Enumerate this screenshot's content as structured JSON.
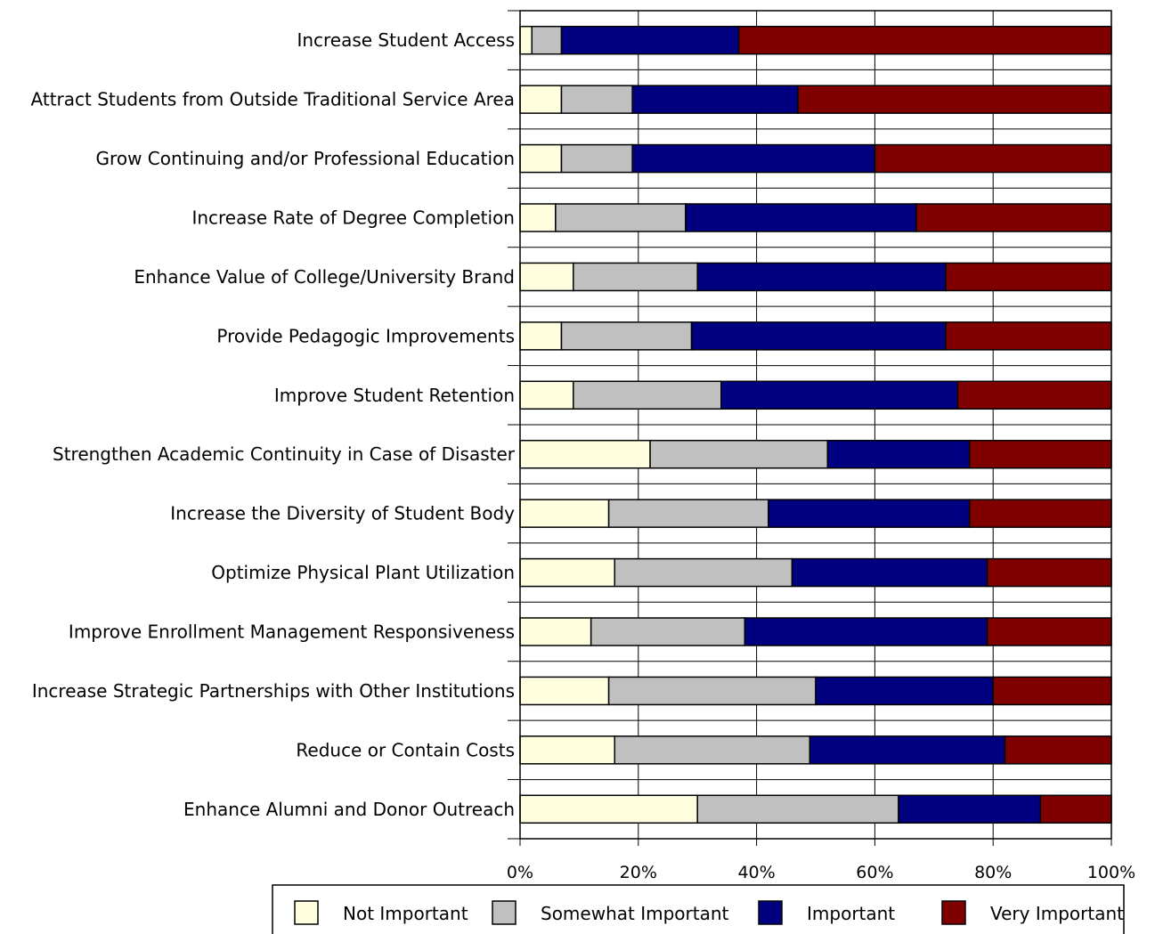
{
  "chart_data": {
    "type": "bar",
    "orientation": "horizontal",
    "stacked": true,
    "categories": [
      "Increase Student Access",
      "Attract Students from Outside Traditional Service Area",
      "Grow Continuing and/or Professional Education",
      "Increase Rate of Degree Completion",
      "Enhance Value of College/University Brand",
      "Provide Pedagogic Improvements",
      "Improve Student Retention",
      "Strengthen Academic Continuity in Case of Disaster",
      "Increase the Diversity of Student Body",
      "Optimize Physical Plant Utilization",
      "Improve Enrollment Management Responsiveness",
      "Increase Strategic Partnerships with Other Institutions",
      "Reduce or Contain Costs",
      "Enhance Alumni and Donor Outreach"
    ],
    "series": [
      {
        "name": "Not Important",
        "color": "#FFFFE0",
        "values": [
          2,
          7,
          7,
          6,
          9,
          7,
          9,
          22,
          15,
          16,
          12,
          15,
          16,
          30
        ]
      },
      {
        "name": "Somewhat Important",
        "color": "#C0C0C0",
        "values": [
          5,
          12,
          12,
          22,
          21,
          22,
          25,
          30,
          27,
          30,
          26,
          35,
          33,
          34
        ]
      },
      {
        "name": "Important",
        "color": "#000080",
        "values": [
          30,
          28,
          41,
          39,
          42,
          43,
          40,
          24,
          34,
          33,
          41,
          30,
          33,
          24
        ]
      },
      {
        "name": "Very Important",
        "color": "#800000",
        "values": [
          63,
          53,
          40,
          33,
          28,
          28,
          26,
          24,
          24,
          21,
          21,
          20,
          18,
          12
        ]
      }
    ],
    "xlim": [
      0,
      100
    ],
    "xticks": [
      "0%",
      "20%",
      "40%",
      "60%",
      "80%",
      "100%"
    ],
    "grid": true,
    "legend_position": "bottom",
    "title": "",
    "xlabel": "",
    "ylabel": ""
  }
}
